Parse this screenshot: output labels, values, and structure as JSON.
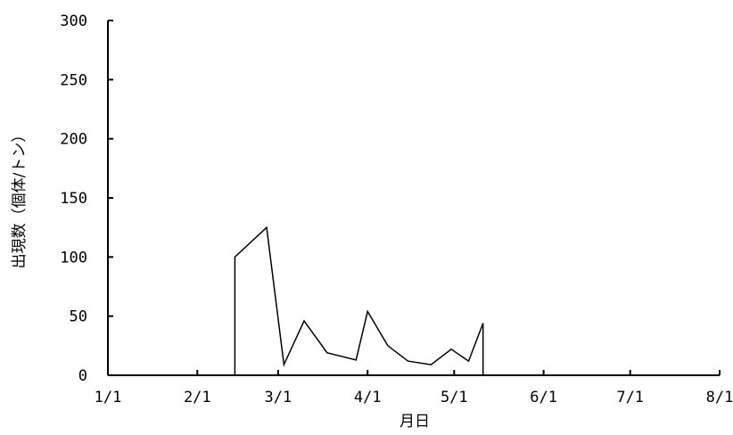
{
  "chart_data": {
    "type": "line",
    "title": "",
    "xlabel": "月日",
    "ylabel": "出現数（個体/トン）",
    "x_ticks": [
      "1/1",
      "2/1",
      "3/1",
      "4/1",
      "5/1",
      "6/1",
      "7/1",
      "8/1"
    ],
    "y_ticks": [
      0,
      50,
      100,
      150,
      200,
      250,
      300
    ],
    "ylim": [
      0,
      300
    ],
    "xlim": [
      "1/1",
      "8/1"
    ],
    "grid": false,
    "legend": "none",
    "line_color": "#000000",
    "series": [
      {
        "x": [
          "2/14",
          "2/14",
          "2/25",
          "3/3",
          "3/10",
          "3/18",
          "3/28",
          "4/1",
          "4/8",
          "4/15",
          "4/23",
          "4/30",
          "5/6",
          "5/11",
          "5/11"
        ],
        "values": [
          0,
          100,
          125,
          9,
          46,
          19,
          13,
          54,
          25,
          12,
          9,
          22,
          12,
          44,
          0
        ]
      }
    ]
  }
}
